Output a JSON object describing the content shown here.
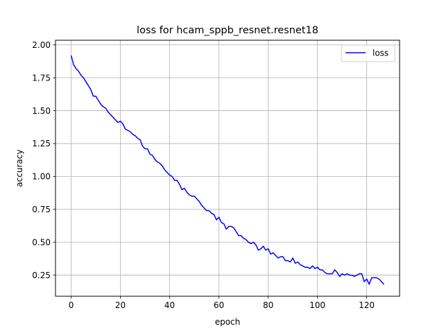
{
  "chart_data": {
    "type": "line",
    "title": "loss for hcam_sppb_resnet.resnet18",
    "xlabel": "epoch",
    "ylabel": "accuracy",
    "xlim": [
      -6.35,
      133.35
    ],
    "ylim": [
      0.0895,
      2.0355
    ],
    "grid": true,
    "legend_position": "upper-right",
    "x_ticks": [
      0,
      20,
      40,
      60,
      80,
      100,
      120
    ],
    "x_tick_labels": [
      "0",
      "20",
      "40",
      "60",
      "80",
      "100",
      "120"
    ],
    "y_ticks": [
      0.25,
      0.5,
      0.75,
      1.0,
      1.25,
      1.5,
      1.75,
      2.0
    ],
    "y_tick_labels": [
      "0.25",
      "0.50",
      "0.75",
      "1.00",
      "1.25",
      "1.50",
      "1.75",
      "2.00"
    ],
    "series": [
      {
        "name": "loss",
        "color": "#0000ff",
        "x": [
          0,
          1,
          2,
          3,
          4,
          5,
          6,
          7,
          8,
          9,
          10,
          11,
          12,
          13,
          14,
          15,
          16,
          17,
          18,
          19,
          20,
          21,
          22,
          23,
          24,
          25,
          26,
          27,
          28,
          29,
          30,
          31,
          32,
          33,
          34,
          35,
          36,
          37,
          38,
          39,
          40,
          41,
          42,
          43,
          44,
          45,
          46,
          47,
          48,
          49,
          50,
          51,
          52,
          53,
          54,
          55,
          56,
          57,
          58,
          59,
          60,
          61,
          62,
          63,
          64,
          65,
          66,
          67,
          68,
          69,
          70,
          71,
          72,
          73,
          74,
          75,
          76,
          77,
          78,
          79,
          80,
          81,
          82,
          83,
          84,
          85,
          86,
          87,
          88,
          89,
          90,
          91,
          92,
          93,
          94,
          95,
          96,
          97,
          98,
          99,
          100,
          101,
          102,
          103,
          104,
          105,
          106,
          107,
          108,
          109,
          110,
          111,
          112,
          113,
          114,
          115,
          116,
          117,
          118,
          119,
          120,
          121,
          122,
          123,
          124,
          125,
          126,
          127
        ],
        "y": [
          1.92,
          1.85,
          1.82,
          1.8,
          1.77,
          1.75,
          1.72,
          1.69,
          1.66,
          1.61,
          1.61,
          1.58,
          1.55,
          1.53,
          1.52,
          1.49,
          1.47,
          1.45,
          1.43,
          1.41,
          1.42,
          1.4,
          1.36,
          1.35,
          1.34,
          1.32,
          1.31,
          1.29,
          1.28,
          1.23,
          1.21,
          1.21,
          1.17,
          1.16,
          1.13,
          1.11,
          1.1,
          1.08,
          1.05,
          1.03,
          1.01,
          1.0,
          0.97,
          0.97,
          0.94,
          0.9,
          0.91,
          0.88,
          0.86,
          0.85,
          0.85,
          0.83,
          0.81,
          0.78,
          0.76,
          0.74,
          0.74,
          0.72,
          0.71,
          0.67,
          0.69,
          0.65,
          0.64,
          0.6,
          0.62,
          0.62,
          0.61,
          0.58,
          0.55,
          0.55,
          0.53,
          0.52,
          0.5,
          0.49,
          0.5,
          0.48,
          0.44,
          0.45,
          0.47,
          0.44,
          0.45,
          0.41,
          0.42,
          0.4,
          0.38,
          0.39,
          0.39,
          0.36,
          0.36,
          0.35,
          0.38,
          0.34,
          0.35,
          0.33,
          0.32,
          0.31,
          0.31,
          0.3,
          0.32,
          0.3,
          0.31,
          0.29,
          0.29,
          0.27,
          0.26,
          0.26,
          0.26,
          0.29,
          0.27,
          0.24,
          0.26,
          0.25,
          0.26,
          0.25,
          0.25,
          0.24,
          0.25,
          0.26,
          0.26,
          0.2,
          0.22,
          0.18,
          0.23,
          0.23,
          0.23,
          0.22,
          0.2,
          0.18
        ]
      }
    ]
  }
}
